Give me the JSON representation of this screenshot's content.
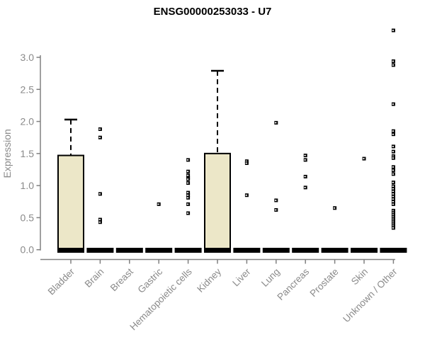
{
  "chart_data": {
    "type": "boxplot",
    "title": "ENSG00000253033 - U7",
    "ylabel": "Expression",
    "xlabel": "",
    "ylim": [
      0,
      3.45
    ],
    "ytick_labels": [
      "0.0",
      "0.5",
      "1.0",
      "1.5",
      "2.0",
      "2.5",
      "3.0"
    ],
    "ytick_values": [
      0,
      0.5,
      1,
      1.5,
      2,
      2.5,
      3
    ],
    "grid": false,
    "legend": "none",
    "colors": {
      "box_fill": "#ECE7C8",
      "box_stroke": "#000000",
      "axis": "#808080",
      "tick_label": "#8a8a8a",
      "marker": "#000000",
      "title": "#000000",
      "background": "#ffffff"
    },
    "categories": [
      "Bladder",
      "Brain",
      "Breast",
      "Gastric",
      "Hematopoietic cells",
      "Kidney",
      "Liver",
      "Lung",
      "Pancreas",
      "Prostate",
      "Skin",
      "Unknown / Other"
    ],
    "series": [
      {
        "category": "Bladder",
        "median": 0,
        "q1": 0,
        "q3": 1.47,
        "whisker_low": 0,
        "whisker_high": 2.03,
        "points": []
      },
      {
        "category": "Brain",
        "median": 0,
        "points": [
          1.88,
          1.75,
          0.87,
          0.47,
          0.43
        ]
      },
      {
        "category": "Breast",
        "median": 0,
        "points": []
      },
      {
        "category": "Gastric",
        "median": 0,
        "points": [
          0.71
        ]
      },
      {
        "category": "Hematopoietic cells",
        "median": 0,
        "points": [
          1.4,
          1.22,
          1.16,
          1.12,
          1.1,
          1.04,
          0.89,
          0.85,
          0.81,
          0.71,
          0.57
        ]
      },
      {
        "category": "Kidney",
        "median": 0,
        "q1": 0,
        "q3": 1.5,
        "whisker_low": 0,
        "whisker_high": 2.79,
        "points": []
      },
      {
        "category": "Liver",
        "median": 0,
        "points": [
          1.38,
          1.35,
          0.85
        ]
      },
      {
        "category": "Lung",
        "median": 0,
        "points": [
          1.98,
          0.77,
          0.62
        ]
      },
      {
        "category": "Pancreas",
        "median": 0,
        "points": [
          1.47,
          1.4,
          1.14,
          0.97
        ]
      },
      {
        "category": "Prostate",
        "median": 0,
        "points": [
          0.65
        ]
      },
      {
        "category": "Skin",
        "median": 0,
        "points": [
          1.42
        ]
      },
      {
        "category": "Unknown / Other",
        "median": 0,
        "points": [
          3.42,
          2.94,
          2.88,
          2.27,
          1.85,
          1.8,
          1.61,
          1.53,
          1.46,
          1.43,
          1.29,
          1.24,
          1.18,
          1.05,
          0.99,
          0.95,
          0.91,
          0.87,
          0.83,
          0.79,
          0.75,
          0.71,
          0.61,
          0.58,
          0.55,
          0.52,
          0.49,
          0.46,
          0.43,
          0.4,
          0.37,
          0.34
        ]
      }
    ]
  }
}
